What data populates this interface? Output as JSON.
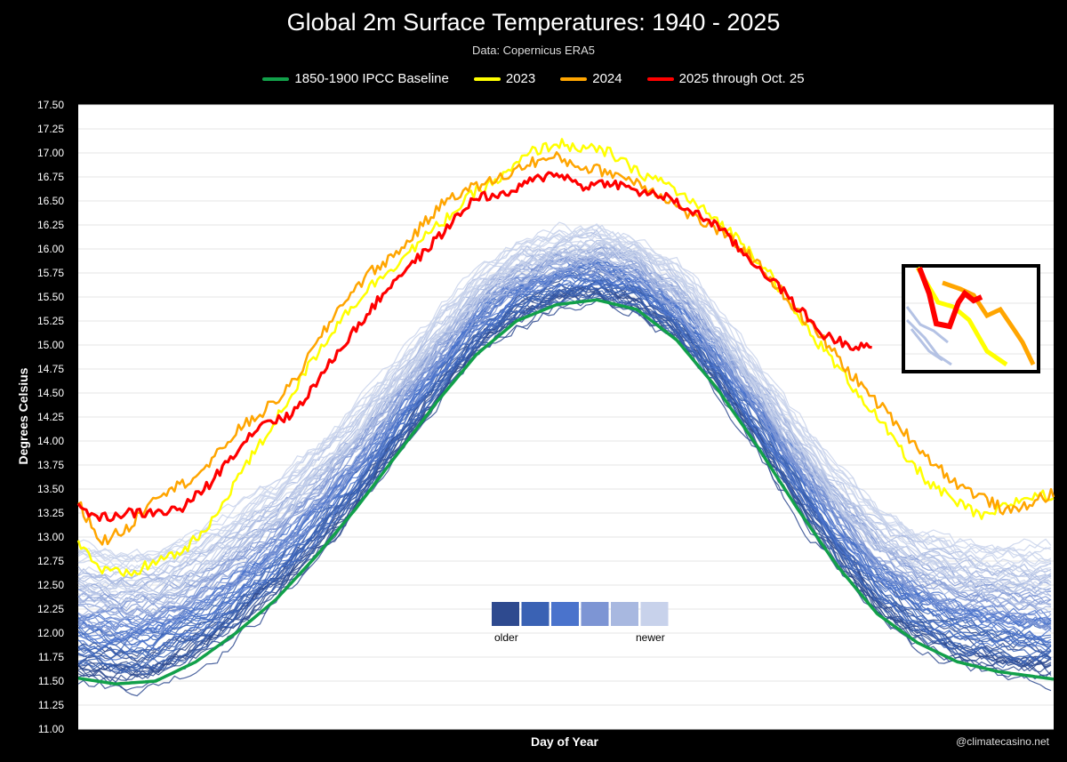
{
  "chart_data": {
    "type": "line",
    "title": "Global 2m Surface Temperatures: 1940 - 2025",
    "subtitle": "Data: Copernicus ERA5",
    "xlabel": "Day of Year",
    "ylabel": "Degrees Celsius",
    "xlim": [
      1,
      366
    ],
    "ylim": [
      11.0,
      17.5
    ],
    "yticks": [
      "17.50",
      "17.25",
      "17.00",
      "16.75",
      "16.50",
      "16.25",
      "16.00",
      "15.75",
      "15.50",
      "15.25",
      "15.00",
      "14.75",
      "14.50",
      "14.25",
      "14.00",
      "13.75",
      "13.50",
      "13.25",
      "13.00",
      "12.75",
      "12.50",
      "12.25",
      "12.00",
      "11.75",
      "11.50",
      "11.25",
      "11.00"
    ],
    "legend": [
      "1850-1900 IPCC Baseline",
      "2023",
      "2024",
      "2025 through Oct. 25"
    ],
    "series": [
      {
        "name": "1850-1900 IPCC Baseline",
        "color": "#12a04a",
        "x": [
          1,
          15,
          30,
          45,
          60,
          75,
          90,
          105,
          120,
          135,
          150,
          165,
          180,
          195,
          210,
          225,
          240,
          255,
          270,
          285,
          300,
          315,
          330,
          345,
          366
        ],
        "y": [
          11.53,
          11.47,
          11.5,
          11.7,
          12.0,
          12.35,
          12.8,
          13.3,
          13.85,
          14.4,
          14.9,
          15.25,
          15.42,
          15.47,
          15.37,
          15.05,
          14.55,
          13.95,
          13.3,
          12.7,
          12.2,
          11.9,
          11.7,
          11.6,
          11.52
        ]
      },
      {
        "name": "2023",
        "color": "#ffff00",
        "x": [
          1,
          10,
          20,
          30,
          40,
          50,
          60,
          70,
          80,
          90,
          100,
          110,
          120,
          130,
          140,
          150,
          160,
          170,
          180,
          190,
          200,
          210,
          220,
          230,
          240,
          250,
          260,
          270,
          280,
          290,
          300,
          310,
          320,
          330,
          340,
          350,
          360,
          366
        ],
        "y": [
          12.95,
          12.65,
          12.6,
          12.75,
          12.85,
          13.1,
          13.6,
          14.0,
          14.45,
          14.9,
          15.3,
          15.6,
          15.85,
          16.1,
          16.35,
          16.6,
          16.75,
          17.0,
          17.1,
          17.05,
          17.0,
          16.8,
          16.7,
          16.5,
          16.3,
          16.05,
          15.75,
          15.3,
          14.95,
          14.6,
          14.25,
          13.85,
          13.55,
          13.35,
          13.2,
          13.35,
          13.45,
          13.4
        ]
      },
      {
        "name": "2024",
        "color": "#ffa500",
        "x": [
          1,
          10,
          20,
          30,
          40,
          50,
          60,
          70,
          80,
          90,
          100,
          110,
          120,
          130,
          140,
          150,
          160,
          170,
          180,
          190,
          200,
          210,
          220,
          230,
          240,
          250,
          260,
          270,
          280,
          290,
          300,
          310,
          320,
          330,
          340,
          350,
          360,
          366
        ],
        "y": [
          13.35,
          12.95,
          13.1,
          13.45,
          13.55,
          13.75,
          14.1,
          14.3,
          14.55,
          15.0,
          15.45,
          15.75,
          15.95,
          16.25,
          16.55,
          16.65,
          16.75,
          16.9,
          16.95,
          16.85,
          16.8,
          16.7,
          16.55,
          16.35,
          16.2,
          16.0,
          15.7,
          15.35,
          15.05,
          14.7,
          14.4,
          14.1,
          13.8,
          13.55,
          13.4,
          13.25,
          13.4,
          13.45
        ]
      },
      {
        "name": "2025 through Oct. 25",
        "color": "#ff0000",
        "x": [
          1,
          10,
          20,
          30,
          40,
          50,
          60,
          70,
          80,
          90,
          100,
          110,
          120,
          130,
          140,
          150,
          160,
          170,
          180,
          190,
          200,
          210,
          220,
          230,
          240,
          250,
          260,
          270,
          280,
          290,
          298
        ],
        "y": [
          13.3,
          13.2,
          13.25,
          13.25,
          13.3,
          13.55,
          13.9,
          14.2,
          14.25,
          14.6,
          15.0,
          15.35,
          15.7,
          15.95,
          16.25,
          16.55,
          16.55,
          16.7,
          16.8,
          16.65,
          16.7,
          16.6,
          16.55,
          16.4,
          16.25,
          15.95,
          15.7,
          15.4,
          15.1,
          15.0,
          15.0
        ]
      }
    ],
    "historical_years": {
      "count": 83,
      "color_scale": [
        "#2e4a8f",
        "#3a62b4",
        "#4a73cc",
        "#7d95d4",
        "#a8b8e0",
        "#c8d2eb"
      ]
    },
    "color_scale_labels": {
      "older": "older",
      "newer": "newer"
    }
  },
  "credit": "@climatecasino.net"
}
